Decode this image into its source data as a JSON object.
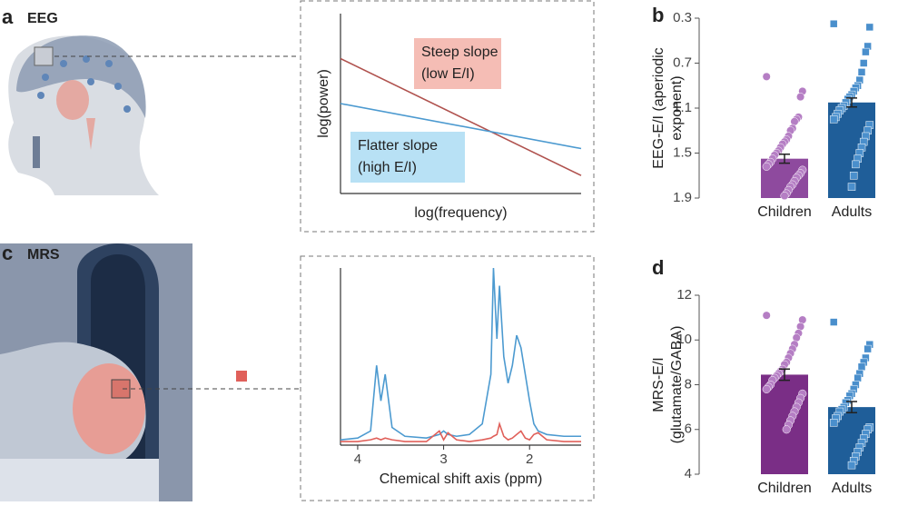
{
  "panels": [
    {
      "letter": "a",
      "title": "EEG"
    },
    {
      "letter": "b"
    },
    {
      "letter": "c",
      "title": "MRS"
    },
    {
      "letter": "d"
    }
  ],
  "chart_data": [
    {
      "type": "line",
      "xlabel": "log(frequency)",
      "ylabel": "log(power)",
      "x": [
        0,
        10
      ],
      "xlim": [
        0,
        10
      ],
      "ylim": [
        0,
        10
      ],
      "series": [
        {
          "color": "#b0524e",
          "values": [
            7.5,
            1.0
          ]
        },
        {
          "color": "#4c9ad0",
          "values": [
            5.0,
            2.5
          ]
        }
      ],
      "annotations": [
        {
          "text": [
            "Steep slope",
            "(low E/I)"
          ],
          "color": "#f5bdb5"
        },
        {
          "text": [
            "Flatter slope",
            "(high E/I)"
          ],
          "color": "#b8e1f5"
        }
      ]
    },
    {
      "type": "line",
      "xlabel": "Chemical shift axis (ppm)",
      "x": [
        4.2,
        4.0,
        3.85,
        3.78,
        3.73,
        3.68,
        3.6,
        3.45,
        3.2,
        3.05,
        3.0,
        2.95,
        2.85,
        2.7,
        2.55,
        2.45,
        2.42,
        2.38,
        2.35,
        2.3,
        2.25,
        2.2,
        2.15,
        2.1,
        2.05,
        2.0,
        1.95,
        1.9,
        1.8,
        1.6,
        1.4
      ],
      "xlim": [
        4.2,
        1.4
      ],
      "xticks": [
        4,
        3,
        2
      ],
      "ylim": [
        0,
        100
      ],
      "series": [
        {
          "color": "#4c9ad0",
          "values": [
            3,
            4,
            8,
            45,
            25,
            40,
            10,
            5,
            4,
            6,
            8,
            6,
            5,
            6,
            12,
            40,
            100,
            60,
            90,
            50,
            35,
            45,
            62,
            55,
            40,
            25,
            12,
            8,
            6,
            5,
            5
          ]
        },
        {
          "color": "#e0605a",
          "values": [
            2,
            2,
            3,
            4,
            3,
            4,
            3,
            2,
            2,
            8,
            3,
            7,
            3,
            2,
            3,
            4,
            5,
            6,
            12,
            5,
            3,
            4,
            6,
            8,
            4,
            3,
            6,
            7,
            3,
            2,
            2
          ]
        }
      ]
    },
    {
      "type": "bar",
      "ylabel": [
        "EEG-E/I (aperiodic",
        "exponent)"
      ],
      "categories": [
        "Children",
        "Adults"
      ],
      "values": [
        1.55,
        1.05
      ],
      "errors": [
        0.04,
        0.04
      ],
      "ylim": [
        1.9,
        0.3
      ],
      "yticks": [
        0.3,
        0.7,
        1.1,
        1.5,
        1.9
      ],
      "bar_colors": [
        "#8e4a9e",
        "#1f5e99"
      ],
      "point_colors": [
        "#b57ec4",
        "#4a8fcc"
      ],
      "points": [
        [
          0.82,
          0.95,
          1.0,
          1.18,
          1.2,
          1.22,
          1.28,
          1.3,
          1.35,
          1.38,
          1.4,
          1.42,
          1.45,
          1.48,
          1.5,
          1.52,
          1.55,
          1.58,
          1.6,
          1.62,
          1.65,
          1.68,
          1.7,
          1.72,
          1.75,
          1.78,
          1.8,
          1.83,
          1.86,
          1.88
        ],
        [
          0.35,
          0.38,
          0.55,
          0.6,
          0.7,
          0.78,
          0.85,
          0.9,
          0.92,
          0.95,
          0.98,
          1.0,
          1.02,
          1.05,
          1.08,
          1.1,
          1.12,
          1.15,
          1.18,
          1.2,
          1.25,
          1.3,
          1.35,
          1.4,
          1.45,
          1.5,
          1.55,
          1.6,
          1.7,
          1.8
        ]
      ]
    },
    {
      "type": "bar",
      "ylabel": [
        "MRS-E/I",
        "(glutamate/GABA)"
      ],
      "categories": [
        "Children",
        "Adults"
      ],
      "values": [
        8.45,
        7.0
      ],
      "errors": [
        0.25,
        0.25
      ],
      "ylim": [
        4,
        12
      ],
      "yticks": [
        4,
        6,
        8,
        10,
        12
      ],
      "bar_colors": [
        "#7a2e86",
        "#1f5e99"
      ],
      "point_colors": [
        "#b57ec4",
        "#4a8fcc"
      ],
      "points": [
        [
          11.1,
          10.9,
          10.6,
          10.3,
          10.1,
          9.8,
          9.6,
          9.4,
          9.2,
          9.0,
          8.9,
          8.7,
          8.6,
          8.5,
          8.4,
          8.3,
          8.2,
          8.0,
          7.9,
          7.8,
          7.6,
          7.4,
          7.2,
          7.0,
          6.8,
          6.6,
          6.4,
          6.2,
          6.0
        ],
        [
          10.8,
          9.8,
          9.6,
          9.2,
          9.0,
          8.8,
          8.5,
          8.3,
          8.0,
          7.8,
          7.6,
          7.5,
          7.3,
          7.2,
          7.0,
          6.9,
          6.8,
          6.6,
          6.5,
          6.3,
          6.1,
          6.0,
          5.8,
          5.6,
          5.4,
          5.2,
          5.0,
          4.8,
          4.6,
          4.4
        ]
      ]
    }
  ]
}
